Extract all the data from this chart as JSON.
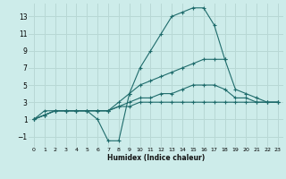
{
  "xlabel": "Humidex (Indice chaleur)",
  "bg_color": "#cdecea",
  "grid_color": "#b8d8d5",
  "line_color": "#1e6b6b",
  "xlim": [
    -0.5,
    23.5
  ],
  "ylim": [
    -2.2,
    14.5
  ],
  "xticks": [
    0,
    1,
    2,
    3,
    4,
    5,
    6,
    7,
    8,
    9,
    10,
    11,
    12,
    13,
    14,
    15,
    16,
    17,
    18,
    19,
    20,
    21,
    22,
    23
  ],
  "yticks": [
    -1,
    1,
    3,
    5,
    7,
    9,
    11,
    13
  ],
  "line1_x": [
    0,
    1,
    2,
    3,
    4,
    5,
    6,
    7,
    8,
    9,
    10,
    11,
    12,
    13,
    14,
    15,
    16,
    17,
    18
  ],
  "line1_y": [
    1,
    2,
    2,
    2,
    2,
    2,
    1,
    -1.5,
    -1.5,
    4,
    7,
    9,
    11,
    13,
    13.5,
    14,
    14,
    12,
    8
  ],
  "line2_x": [
    0,
    1,
    2,
    3,
    4,
    5,
    6,
    7,
    8,
    9,
    10,
    11,
    12,
    13,
    14,
    15,
    16,
    17,
    18,
    19,
    20,
    21,
    22,
    23
  ],
  "line2_y": [
    1,
    1.5,
    2,
    2,
    2,
    2,
    2,
    2,
    3,
    4,
    5,
    5.5,
    6,
    6.5,
    7,
    7.5,
    8,
    8,
    8,
    4.5,
    4,
    3.5,
    3,
    3
  ],
  "line3_x": [
    0,
    1,
    2,
    3,
    4,
    5,
    6,
    7,
    8,
    9,
    10,
    11,
    12,
    13,
    14,
    15,
    16,
    17,
    18,
    19,
    20,
    21,
    22,
    23
  ],
  "line3_y": [
    1,
    1.5,
    2,
    2,
    2,
    2,
    2,
    2,
    2.5,
    3,
    3.5,
    3.5,
    4,
    4,
    4.5,
    5,
    5,
    5,
    4.5,
    3.5,
    3.5,
    3,
    3,
    3
  ],
  "line4_x": [
    0,
    1,
    2,
    3,
    4,
    5,
    6,
    7,
    8,
    9,
    10,
    11,
    12,
    13,
    14,
    15,
    16,
    17,
    18,
    19,
    20,
    21,
    22,
    23
  ],
  "line4_y": [
    1,
    1.5,
    2,
    2,
    2,
    2,
    2,
    2,
    2.5,
    2.5,
    3,
    3,
    3,
    3,
    3,
    3,
    3,
    3,
    3,
    3,
    3,
    3,
    3,
    3
  ]
}
